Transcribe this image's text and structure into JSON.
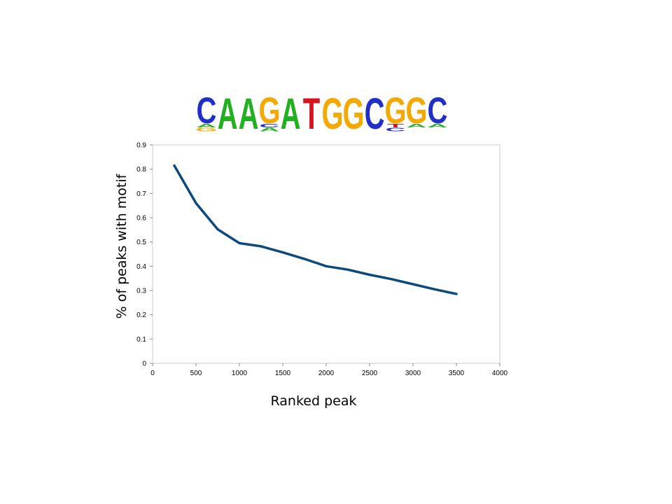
{
  "motif_logo": {
    "sequence": "CAAGATGGCGGC",
    "columns": [
      {
        "main": "C",
        "main_color": "#1f2fc8",
        "minor": [
          "A",
          "G"
        ],
        "minor_colors": [
          "#20b020",
          "#f5a800"
        ]
      },
      {
        "main": "A",
        "main_color": "#20b020",
        "minor": [],
        "minor_colors": []
      },
      {
        "main": "A",
        "main_color": "#20b020",
        "minor": [],
        "minor_colors": []
      },
      {
        "main": "G",
        "main_color": "#f5a800",
        "minor": [
          "C",
          "A"
        ],
        "minor_colors": [
          "#1f2fc8",
          "#20b020"
        ]
      },
      {
        "main": "A",
        "main_color": "#20b020",
        "minor": [],
        "minor_colors": []
      },
      {
        "main": "T",
        "main_color": "#d6141e",
        "minor": [],
        "minor_colors": []
      },
      {
        "main": "G",
        "main_color": "#f5a800",
        "minor": [],
        "minor_colors": []
      },
      {
        "main": "G",
        "main_color": "#f5a800",
        "minor": [],
        "minor_colors": []
      },
      {
        "main": "C",
        "main_color": "#1f2fc8",
        "minor": [],
        "minor_colors": []
      },
      {
        "main": "G",
        "main_color": "#f5a800",
        "minor": [
          "T",
          "C"
        ],
        "minor_colors": [
          "#d6141e",
          "#1f2fc8"
        ]
      },
      {
        "main": "G",
        "main_color": "#f5a800",
        "minor": [
          "A"
        ],
        "minor_colors": [
          "#20b020"
        ]
      },
      {
        "main": "C",
        "main_color": "#1f2fc8",
        "minor": [
          "A"
        ],
        "minor_colors": [
          "#20b020"
        ]
      }
    ]
  },
  "chart_data": {
    "type": "line",
    "title": "",
    "xlabel": "Ranked peak",
    "ylabel": "% of peaks with motif",
    "xlim": [
      0,
      4000
    ],
    "ylim": [
      0,
      0.9
    ],
    "x_ticks": [
      "0",
      "500",
      "1000",
      "1500",
      "2000",
      "2500",
      "3000",
      "3500",
      "4000"
    ],
    "y_ticks": [
      "0",
      "0.1",
      "0.2",
      "0.3",
      "0.4",
      "0.5",
      "0.6",
      "0.7",
      "0.8",
      "0.9"
    ],
    "grid": false,
    "legend": "none",
    "series": [
      {
        "color": "#0b4a7e",
        "x": [
          250,
          500,
          750,
          1000,
          1250,
          1500,
          1750,
          2000,
          2250,
          2500,
          2750,
          3000,
          3250,
          3500
        ],
        "y": [
          0.815,
          0.66,
          0.552,
          0.495,
          0.482,
          0.457,
          0.43,
          0.4,
          0.386,
          0.365,
          0.347,
          0.326,
          0.305,
          0.286
        ]
      }
    ]
  }
}
